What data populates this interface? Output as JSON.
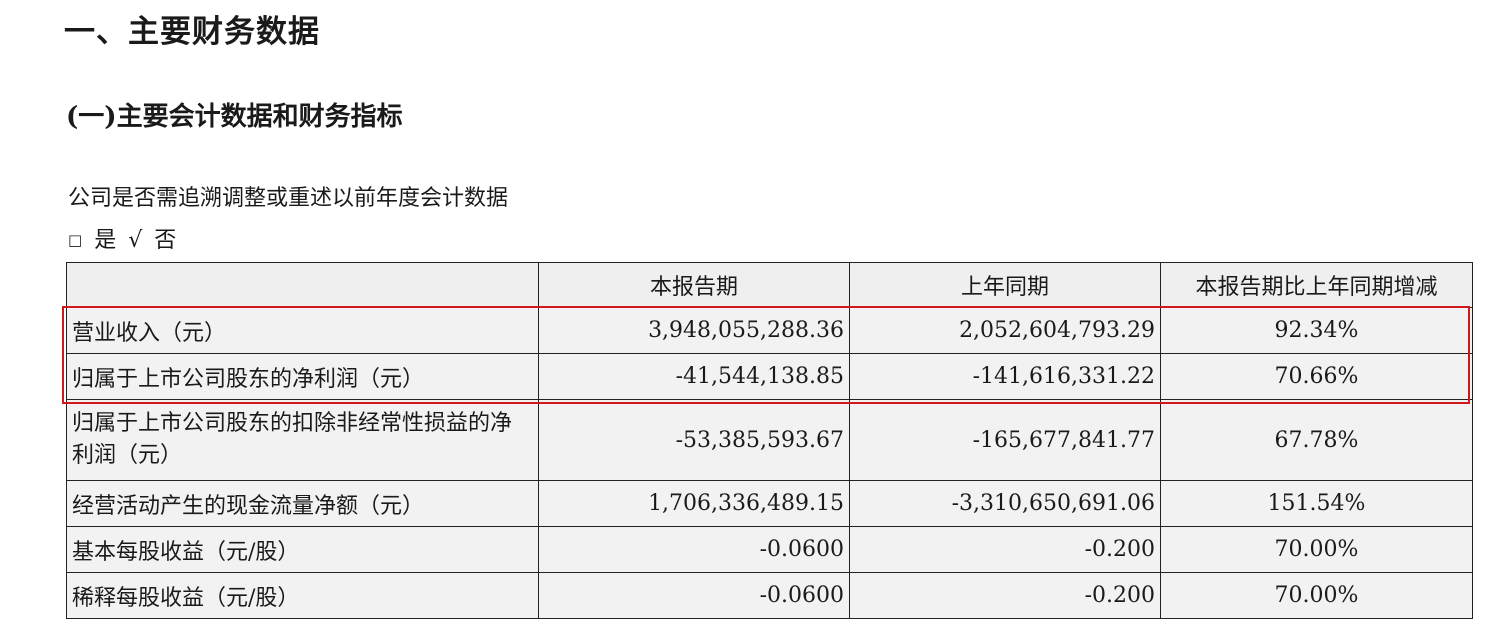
{
  "heading1": "一、主要财务数据",
  "heading2": "(一)主要会计数据和财务指标",
  "restatement_question": "公司是否需追溯调整或重述以前年度会计数据",
  "options": {
    "box": "□",
    "yes": "是",
    "check": "√",
    "no": "否"
  },
  "table": {
    "headers": [
      "",
      "本报告期",
      "上年同期",
      "本报告期比上年同期增减"
    ],
    "rows": [
      {
        "label": "营业收入（元）",
        "current": "3,948,055,288.36",
        "prior": "2,052,604,793.29",
        "change": "92.34%"
      },
      {
        "label": "归属于上市公司股东的净利润（元）",
        "current": "-41,544,138.85",
        "prior": "-141,616,331.22",
        "change": "70.66%"
      },
      {
        "label": "归属于上市公司股东的扣除非经常性损益的净利润（元）",
        "current": "-53,385,593.67",
        "prior": "-165,677,841.77",
        "change": "67.78%"
      },
      {
        "label": "经营活动产生的现金流量净额（元）",
        "current": "1,706,336,489.15",
        "prior": "-3,310,650,691.06",
        "change": "151.54%"
      },
      {
        "label": "基本每股收益（元/股）",
        "current": "-0.0600",
        "prior": "-0.200",
        "change": "70.00%"
      },
      {
        "label": "稀释每股收益（元/股）",
        "current": "-0.0600",
        "prior": "-0.200",
        "change": "70.00%"
      }
    ]
  },
  "colors": {
    "highlight_border": "#d0191b",
    "cell_background": "#f2f2f2",
    "border": "#222222"
  }
}
